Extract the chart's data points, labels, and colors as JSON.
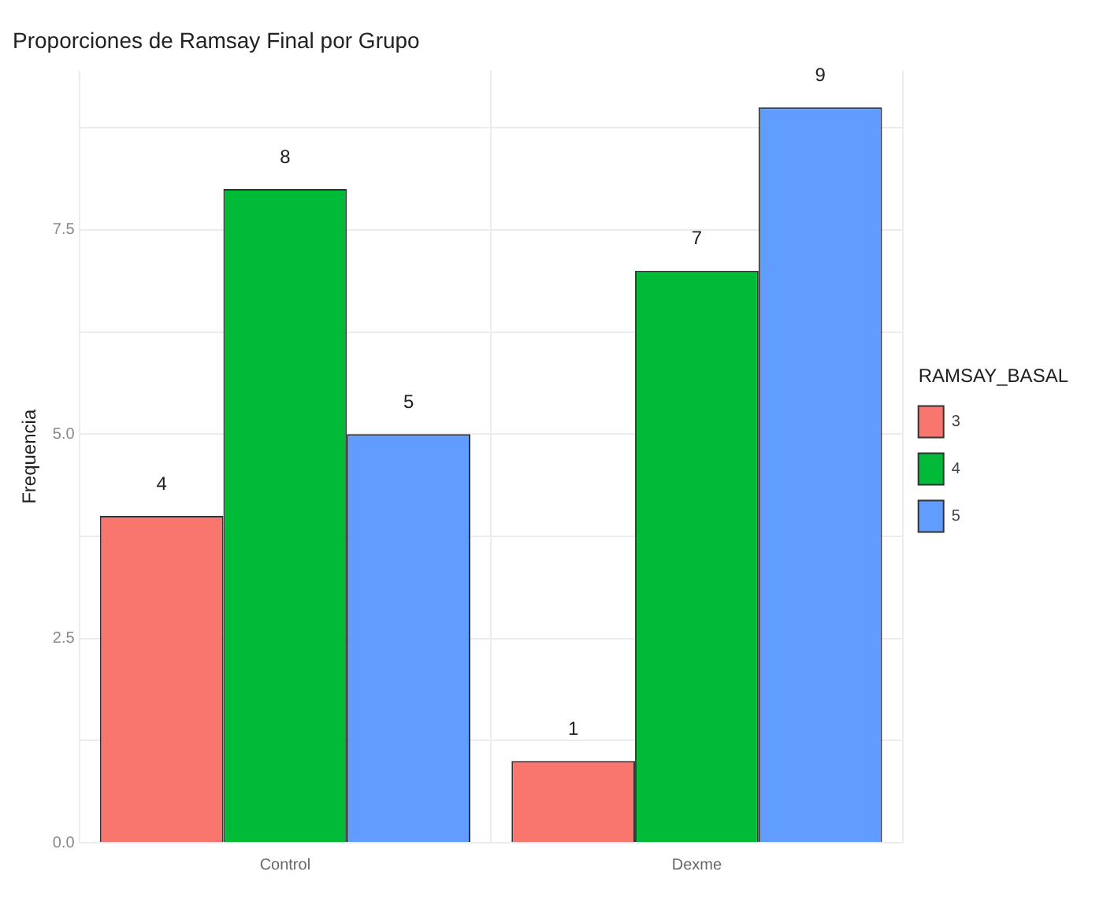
{
  "chart_data": {
    "type": "bar",
    "title": "Proporciones de Ramsay Final por Grupo",
    "ylabel": "Frequencia",
    "legend_title": "RAMSAY_BASAL",
    "categories": [
      "Control",
      "Dexme"
    ],
    "series": [
      {
        "name": "3",
        "color": "#f8766d",
        "values": [
          4,
          1
        ]
      },
      {
        "name": "4",
        "color": "#00ba38",
        "values": [
          8,
          7
        ]
      },
      {
        "name": "5",
        "color": "#619cff",
        "values": [
          5,
          9
        ]
      }
    ],
    "ylim": [
      0,
      9.45
    ],
    "yticks": [
      {
        "value": 0,
        "label": "0.0"
      },
      {
        "value": 1.25,
        "label": null
      },
      2.5,
      {
        "value": 3.75,
        "label": null
      },
      {
        "value": 5,
        "label": "5.0"
      },
      {
        "value": 6.25,
        "label": null
      },
      7.5,
      {
        "value": 8.75,
        "label": null
      }
    ],
    "grid": true,
    "legend": "right",
    "data_labels": true
  }
}
